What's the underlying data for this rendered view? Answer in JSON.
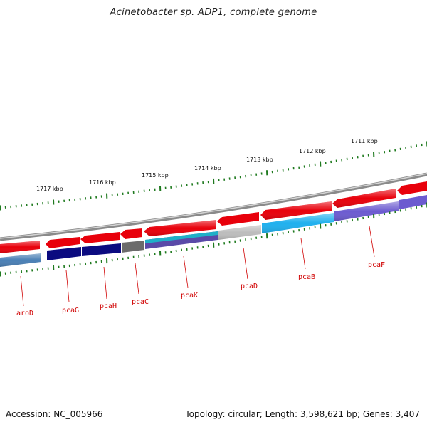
{
  "title": "Acinetobacter sp. ADP1, complete genome",
  "footer": {
    "accession": "Accession: NC_005966",
    "summary": "Topology: circular; Length: 3,598,621 bp; Genes: 3,407"
  },
  "kbp_labels": [
    "1711 kbp",
    "1712 kbp",
    "1713 kbp",
    "1714 kbp",
    "1715 kbp",
    "1716 kbp",
    "1717 kbp"
  ],
  "gene_labels": [
    "aroD",
    "pcaG",
    "pcaH",
    "pcaC",
    "pcaK",
    "pcaD",
    "pcaB",
    "pcaF"
  ],
  "colors": {
    "forward_arrows": "#e8000b",
    "backbone": "#8a8a8a",
    "ticks": "#1f7a1f",
    "label_red": "#d00000",
    "aroD": "#4a7fb5",
    "pcaG": "#0b0b80",
    "pcaH": "#0b0b80",
    "pcaC": "#6b6b6b",
    "pcaK": "#5a4aa8",
    "pcaD": "#bdbdbd",
    "pcaB": "#1fb0ee",
    "pcaF": "#6c5bd0"
  }
}
